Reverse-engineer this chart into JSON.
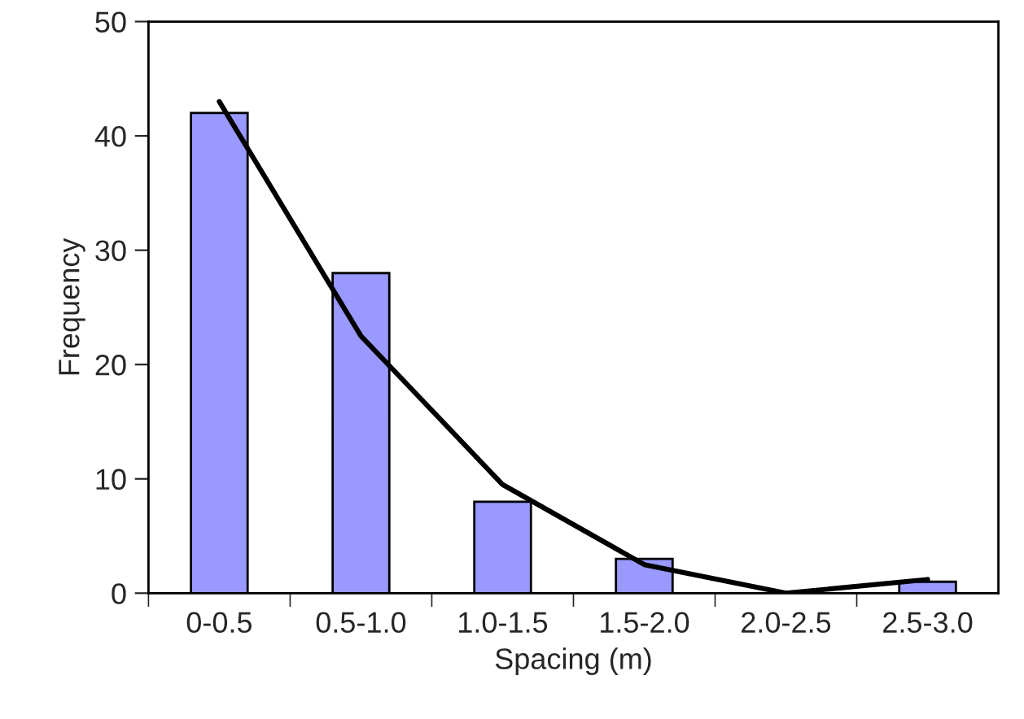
{
  "chart_data": {
    "type": "bar",
    "xlabel": "Spacing (m)",
    "ylabel": "Frequency",
    "categories": [
      "0-0.5",
      "0.5-1.0",
      "1.0-1.5",
      "1.5-2.0",
      "2.0-2.5",
      "2.5-3.0"
    ],
    "series": [
      {
        "color": "#9999ff",
        "values": [
          42,
          28,
          8,
          3,
          0,
          1
        ]
      },
      {
        "type": "line",
        "color": "#000000",
        "values": [
          43,
          22.5,
          9.5,
          2.5,
          0,
          1.2
        ]
      }
    ],
    "ylim": [
      0,
      50
    ],
    "yticks": [
      0,
      10,
      20,
      30,
      40,
      50
    ],
    "grid": false,
    "legend": false
  }
}
